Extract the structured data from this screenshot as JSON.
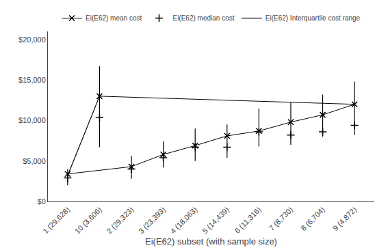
{
  "chart_data": {
    "type": "line",
    "xlabel": "Ei(E62) subset (with sample size)",
    "categories": [
      "1 (29,628)",
      "2 (29,323)",
      "3 (23,393)",
      "4 (18,063)",
      "5 (14,439)",
      "6 (11,316)",
      "7 (8,730)",
      "8 (6,704)",
      "9 (4,872)",
      "10 (3,606)"
    ],
    "series": [
      {
        "name": "Ei(E62) mean cost",
        "color": "#000000",
        "marker": "x",
        "line_style": "solid",
        "values": [
          3400,
          4300,
          5800,
          6900,
          8100,
          8700,
          9800,
          10700,
          12000,
          13000
        ]
      },
      {
        "name": "Ei(E62) median cost",
        "color": "#000000",
        "marker": "plus",
        "line_style": "none",
        "values": [
          2900,
          4000,
          5400,
          6700,
          6700,
          8600,
          8200,
          8600,
          9400,
          10400
        ]
      },
      {
        "name": "Ei(E62) Interquartile cost range",
        "type": "range",
        "color": "#000000",
        "low": [
          2000,
          2800,
          4200,
          5000,
          5400,
          6800,
          7000,
          8000,
          8200,
          6700
        ],
        "high": [
          4000,
          5600,
          7400,
          9000,
          9500,
          11500,
          12200,
          13200,
          14800,
          16700
        ]
      }
    ],
    "trendline": {
      "color": "#000000",
      "x": [
        "1 (29,628)",
        "10 (3,606)"
      ],
      "values": [
        3200,
        13000
      ]
    },
    "ylim": [
      0,
      21000
    ],
    "yticks": [
      {
        "value": 0,
        "label": "$0"
      },
      {
        "value": 5000,
        "label": "$5,000"
      },
      {
        "value": 10000,
        "label": "$10,000"
      },
      {
        "value": 15000,
        "label": "$15,000"
      },
      {
        "value": 20000,
        "label": "$20,000"
      }
    ],
    "grid": false,
    "legend": "top"
  }
}
